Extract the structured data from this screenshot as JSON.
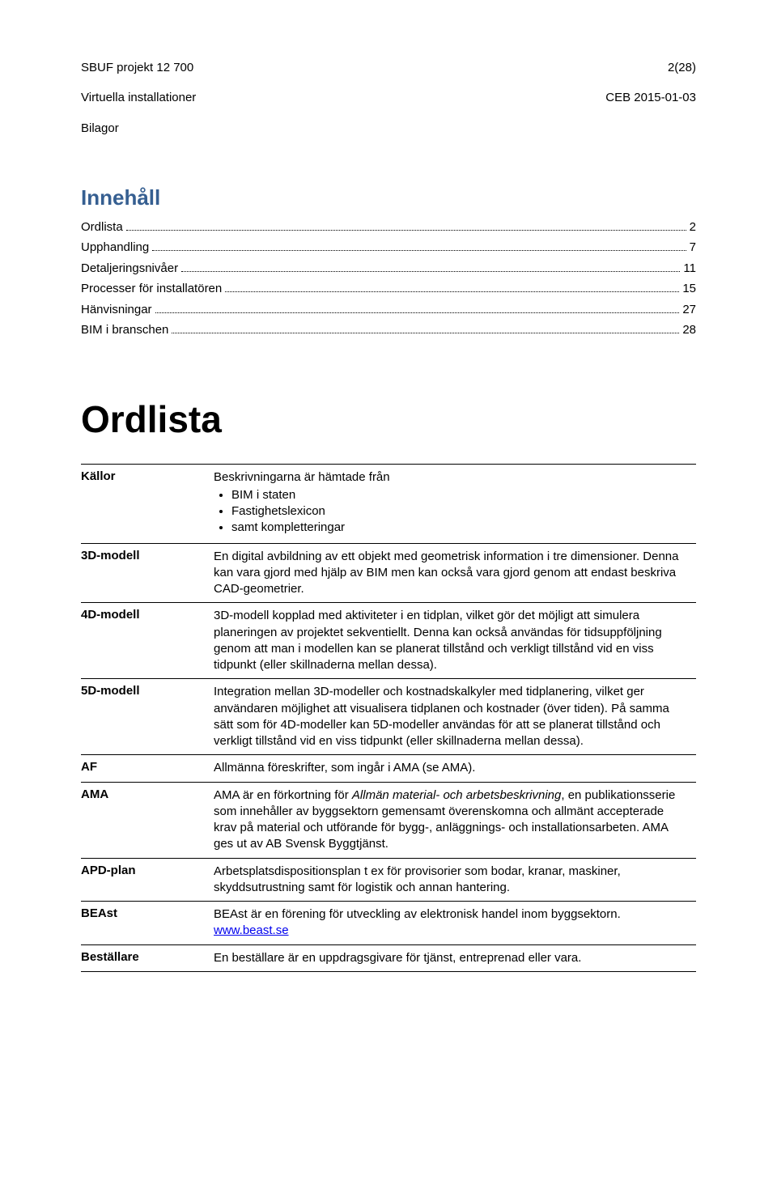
{
  "header": {
    "left_lines": [
      "SBUF projekt 12 700",
      "Virtuella installationer",
      "Bilagor"
    ],
    "right_lines": [
      "2(28)",
      "CEB 2015-01-03"
    ]
  },
  "toc": {
    "title": "Innehåll",
    "items": [
      {
        "label": "Ordlista",
        "page": "2"
      },
      {
        "label": "Upphandling",
        "page": "7"
      },
      {
        "label": "Detaljeringsnivåer",
        "page": "11"
      },
      {
        "label": "Processer för installatören",
        "page": "15"
      },
      {
        "label": "Hänvisningar",
        "page": "27"
      },
      {
        "label": "BIM i branschen",
        "page": "28"
      }
    ]
  },
  "glossary": {
    "title": "Ordlista",
    "rows": [
      {
        "term": "Källor",
        "def_pre": "Beskrivningarna är hämtade från",
        "bullets": [
          "BIM i staten",
          "Fastighetslexicon",
          "samt kompletteringar"
        ]
      },
      {
        "term": "3D-modell",
        "def": "En digital avbildning av ett objekt med geometrisk information i tre dimensioner. Denna kan vara gjord med hjälp av BIM men kan också vara gjord genom att endast beskriva CAD-geometrier."
      },
      {
        "term": "4D-modell",
        "def": "3D-modell kopplad med aktiviteter i en tidplan, vilket gör det möjligt att simulera planeringen av projektet sekventiellt. Denna kan också användas för tidsuppföljning genom att man i modellen kan se planerat tillstånd och verkligt tillstånd vid en viss tidpunkt (eller skillnaderna mellan dessa)."
      },
      {
        "term": "5D-modell",
        "def": "Integration mellan 3D-modeller och kostnadskalkyler med tidplanering, vilket ger användaren möjlighet att visualisera tidplanen och kostnader (över tiden). På samma sätt som för 4D-modeller kan 5D-modeller användas för att se planerat tillstånd och verkligt tillstånd vid en viss tidpunkt (eller skillnaderna mellan dessa)."
      },
      {
        "term": "AF",
        "def": "Allmänna föreskrifter, som ingår i AMA (se AMA)."
      },
      {
        "term": "AMA",
        "def_pre": "AMA är en förkortning för ",
        "italic": "Allmän material- och arbetsbeskrivning",
        "def_post": ", en publikationsserie som innehåller av byggsektorn gemensamt överenskomna och allmänt accepterade krav på material och utförande för bygg-, anläggnings- och installationsarbeten. AMA ges ut av AB Svensk Byggtjänst."
      },
      {
        "term": "APD-plan",
        "def": "Arbetsplatsdispositionsplan t ex för provisorier som bodar, kranar, maskiner, skyddsutrustning samt för logistik och annan hantering."
      },
      {
        "term": "BEAst",
        "def_pre": "BEAst är en förening för utveckling av elektronisk handel inom byggsektorn. ",
        "link_text": "www.beast.se"
      },
      {
        "term": "Beställare",
        "def": "En beställare är en uppdragsgivare för tjänst, entreprenad eller vara."
      }
    ]
  }
}
